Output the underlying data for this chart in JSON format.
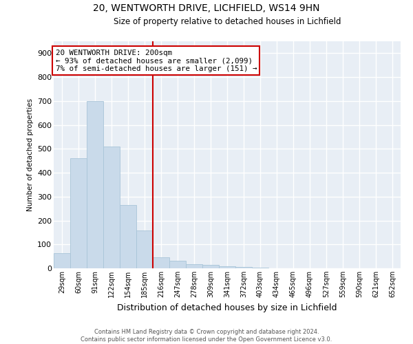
{
  "title1": "20, WENTWORTH DRIVE, LICHFIELD, WS14 9HN",
  "title2": "Size of property relative to detached houses in Lichfield",
  "xlabel": "Distribution of detached houses by size in Lichfield",
  "ylabel": "Number of detached properties",
  "annotation_line1": "20 WENTWORTH DRIVE: 200sqm",
  "annotation_line2": "← 93% of detached houses are smaller (2,099)",
  "annotation_line3": "7% of semi-detached houses are larger (151) →",
  "footer1": "Contains HM Land Registry data © Crown copyright and database right 2024.",
  "footer2": "Contains public sector information licensed under the Open Government Licence v3.0.",
  "categories": [
    "29sqm",
    "60sqm",
    "91sqm",
    "122sqm",
    "154sqm",
    "185sqm",
    "216sqm",
    "247sqm",
    "278sqm",
    "309sqm",
    "341sqm",
    "372sqm",
    "403sqm",
    "434sqm",
    "465sqm",
    "496sqm",
    "527sqm",
    "559sqm",
    "590sqm",
    "621sqm",
    "652sqm"
  ],
  "values": [
    62,
    462,
    700,
    510,
    265,
    157,
    45,
    33,
    18,
    14,
    8,
    5,
    3,
    1,
    0,
    0,
    0,
    0,
    0,
    0,
    0
  ],
  "bar_color": "#c9daea",
  "bar_edge_color": "#a8c4d8",
  "vline_x_index": 6,
  "vline_color": "#cc0000",
  "ylim": [
    0,
    950
  ],
  "yticks": [
    0,
    100,
    200,
    300,
    400,
    500,
    600,
    700,
    800,
    900
  ],
  "annotation_box_color": "#ffffff",
  "annotation_box_edge": "#cc0000",
  "background_color": "#e8eef5",
  "grid_color": "#ffffff"
}
